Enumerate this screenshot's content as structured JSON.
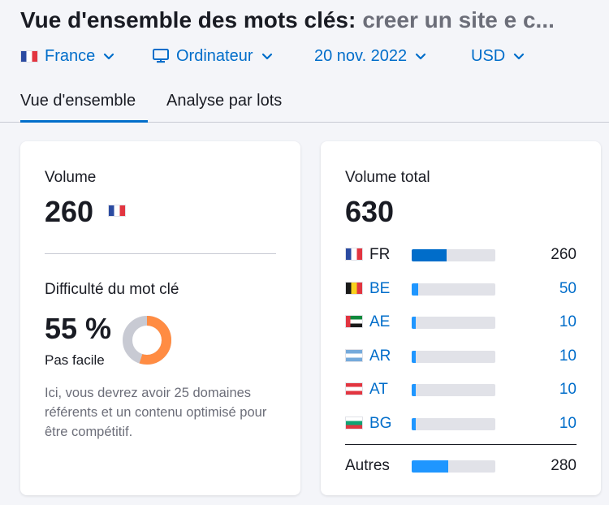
{
  "header": {
    "title": "Vue d'ensemble des mots clés:",
    "keyword": "creer un site e c..."
  },
  "filters": {
    "country": "France",
    "device": "Ordinateur",
    "date": "20 nov. 2022",
    "currency": "USD"
  },
  "tabs": [
    {
      "label": "Vue d'ensemble",
      "active": true
    },
    {
      "label": "Analyse par lots",
      "active": false
    }
  ],
  "volume_card": {
    "volume_label": "Volume",
    "volume_value": "260",
    "difficulty_label": "Difficulté du mot clé",
    "difficulty_value": "55 %",
    "difficulty_percent": 55,
    "difficulty_text": "Pas facile",
    "description": "Ici, vous devrez avoir 25 domaines référents et un contenu optimisé pour être compétitif."
  },
  "total_card": {
    "label": "Volume total",
    "value": "630",
    "countries": [
      {
        "code": "FR",
        "value": "260",
        "share": 0.42,
        "link": false,
        "flag": "fr"
      },
      {
        "code": "BE",
        "value": "50",
        "share": 0.08,
        "link": true,
        "flag": "be"
      },
      {
        "code": "AE",
        "value": "10",
        "share": 0.03,
        "link": true,
        "flag": "ae"
      },
      {
        "code": "AR",
        "value": "10",
        "share": 0.03,
        "link": true,
        "flag": "ar"
      },
      {
        "code": "AT",
        "value": "10",
        "share": 0.03,
        "link": true,
        "flag": "at"
      },
      {
        "code": "BG",
        "value": "10",
        "share": 0.03,
        "link": true,
        "flag": "bg"
      }
    ],
    "others_label": "Autres",
    "others_value": "280",
    "others_share": 0.44
  },
  "colors": {
    "accent": "#006dca",
    "bar_fill": "#1f96ff",
    "bar_fill_fr": "#006dca",
    "bar_track": "#e1e2e8",
    "donut_fill": "#ff8c43",
    "donut_track": "#c8cad3"
  }
}
